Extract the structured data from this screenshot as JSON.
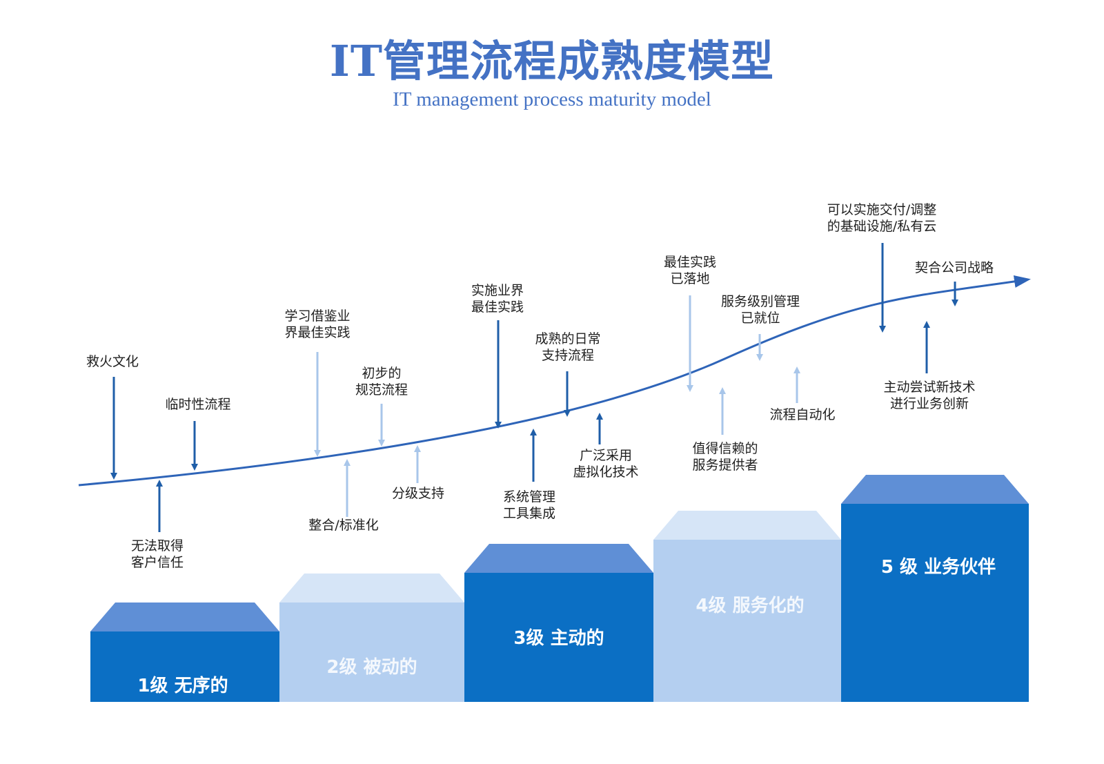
{
  "header": {
    "title": "IT管理流程成熟度模型",
    "subtitle": "IT management process maturity model"
  },
  "colors": {
    "dark_blue": "#1f5ea8",
    "bright_blue": "#0b6fc4",
    "bright_blue_top": "#5f8fd6",
    "light_blue": "#b4cff0",
    "light_blue_top": "#d6e5f7",
    "pale_arrow": "#a8c6ea"
  },
  "levels": [
    {
      "label": "1级 无序的",
      "style": "dark"
    },
    {
      "label": "2级 被动的",
      "style": "light"
    },
    {
      "label": "3级 主动的",
      "style": "dark"
    },
    {
      "label": "4级 服务化的",
      "style": "light"
    },
    {
      "label": "5 级 业务伙伴",
      "style": "dark"
    }
  ],
  "annotations": [
    {
      "id": "firefighting",
      "lines": [
        "救火文化"
      ],
      "arrow": "down",
      "shade": "dark"
    },
    {
      "id": "adhoc-process",
      "lines": [
        "临时性流程"
      ],
      "arrow": "down",
      "shade": "dark"
    },
    {
      "id": "no-customer-trust",
      "lines": [
        "无法取得",
        "客户信任"
      ],
      "arrow": "up",
      "shade": "dark"
    },
    {
      "id": "learn-best-practice",
      "lines": [
        "学习借鉴业",
        "界最佳实践"
      ],
      "arrow": "down",
      "shade": "light"
    },
    {
      "id": "initial-standard-process",
      "lines": [
        "初步的",
        "规范流程"
      ],
      "arrow": "down",
      "shade": "light"
    },
    {
      "id": "integration-standardization",
      "lines": [
        "整合/标准化"
      ],
      "arrow": "up",
      "shade": "light"
    },
    {
      "id": "tiered-support",
      "lines": [
        "分级支持"
      ],
      "arrow": "up",
      "shade": "light"
    },
    {
      "id": "implement-best-practice",
      "lines": [
        "实施业界",
        "最佳实践"
      ],
      "arrow": "down",
      "shade": "dark"
    },
    {
      "id": "mature-daily-support",
      "lines": [
        "成熟的日常",
        "支持流程"
      ],
      "arrow": "down",
      "shade": "dark"
    },
    {
      "id": "system-mgmt-tools",
      "lines": [
        "系统管理",
        "工具集成"
      ],
      "arrow": "up",
      "shade": "dark"
    },
    {
      "id": "virtualization",
      "lines": [
        "广泛采用",
        "虚拟化技术"
      ],
      "arrow": "up",
      "shade": "dark"
    },
    {
      "id": "best-practice-landed",
      "lines": [
        "最佳实践",
        "已落地"
      ],
      "arrow": "down",
      "shade": "light"
    },
    {
      "id": "sla-in-place",
      "lines": [
        "服务级别管理",
        "已就位"
      ],
      "arrow": "down",
      "shade": "light"
    },
    {
      "id": "trusted-provider",
      "lines": [
        "值得信赖的",
        "服务提供者"
      ],
      "arrow": "up",
      "shade": "light"
    },
    {
      "id": "process-automation",
      "lines": [
        "流程自动化"
      ],
      "arrow": "up",
      "shade": "light"
    },
    {
      "id": "private-cloud",
      "lines": [
        "可以实施交付/调整",
        "的基础设施/私有云"
      ],
      "arrow": "down",
      "shade": "dark"
    },
    {
      "id": "company-strategy",
      "lines": [
        "契合公司战略"
      ],
      "arrow": "down",
      "shade": "dark"
    },
    {
      "id": "new-tech-innovation",
      "lines": [
        "主动尝试新技术",
        "进行业务创新"
      ],
      "arrow": "up",
      "shade": "dark"
    }
  ]
}
